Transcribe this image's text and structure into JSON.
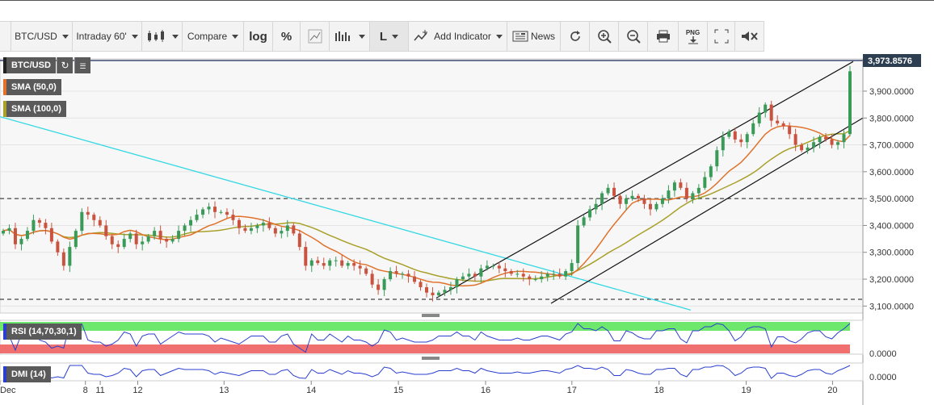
{
  "toolbar": {
    "symbol": "BTC/USD",
    "interval": "Intraday 60'",
    "compare": "Compare",
    "log": "log",
    "percent": "%",
    "chart_style": "L",
    "add_indicator": "Add Indicator",
    "news": "News",
    "icons": [
      "candlestick-icon",
      "draw-icon",
      "bars-icon",
      "indicator-icon",
      "news-icon",
      "refresh-icon",
      "zoom-in-icon",
      "zoom-out-icon",
      "print-icon",
      "png-download-icon",
      "fullscreen-icon",
      "remove-icon"
    ],
    "png_label": "PNG"
  },
  "legends": {
    "symbol": "BTC/USD",
    "sma50": "SMA (50,0)",
    "sma100": "SMA (100,0)",
    "rsi": "RSI (14,70,30,1)",
    "dmi": "DMI (14)"
  },
  "colors": {
    "candle_up": "#3a9a58",
    "candle_down": "#c9533f",
    "sma50": "#e0722c",
    "sma100": "#a8a02a",
    "trendline": "#35d8e3",
    "channel": "#111111",
    "rsi_line": "#2a3fcf",
    "rsi_overbought": "#6de86d",
    "rsi_oversold": "#f07070",
    "last_price_bg": "#2c3e50"
  },
  "chart_data": {
    "type": "candlestick",
    "symbol": "BTC/USD",
    "last_price": "3,973.8576",
    "ylim": [
      3080,
      4020
    ],
    "y_ticks": [
      "3,100.0000",
      "3,200.0000",
      "3,300.0000",
      "3,400.0000",
      "3,500.0000",
      "3,600.0000",
      "3,700.0000",
      "3,800.0000",
      "3,900.0000"
    ],
    "y_tick_values": [
      3100,
      3200,
      3300,
      3400,
      3500,
      3600,
      3700,
      3800,
      3900
    ],
    "x_ticks": [
      {
        "label": "Dec",
        "t": 0
      },
      {
        "label": "8",
        "t": 0.98
      },
      {
        "label": "11",
        "t": 1.15
      },
      {
        "label": "12",
        "t": 1.58
      },
      {
        "label": "13",
        "t": 2.57
      },
      {
        "label": "14",
        "t": 3.57
      },
      {
        "label": "15",
        "t": 4.57
      },
      {
        "label": "16",
        "t": 5.57
      },
      {
        "label": "17",
        "t": 6.56
      },
      {
        "label": "18",
        "t": 7.56
      },
      {
        "label": "19",
        "t": 8.56
      },
      {
        "label": "20",
        "t": 9.55
      }
    ],
    "horizontal_levels": [
      3500,
      3125
    ],
    "close": [
      3380,
      3390,
      3330,
      3350,
      3380,
      3420,
      3410,
      3390,
      3340,
      3300,
      3250,
      3320,
      3380,
      3450,
      3440,
      3420,
      3400,
      3360,
      3330,
      3320,
      3350,
      3370,
      3330,
      3340,
      3360,
      3380,
      3350,
      3340,
      3350,
      3380,
      3400,
      3420,
      3440,
      3460,
      3470,
      3450,
      3450,
      3440,
      3420,
      3390,
      3380,
      3390,
      3400,
      3410,
      3390,
      3370,
      3380,
      3400,
      3370,
      3320,
      3250,
      3270,
      3260,
      3250,
      3270,
      3270,
      3250,
      3260,
      3250,
      3240,
      3220,
      3180,
      3160,
      3200,
      3230,
      3220,
      3220,
      3210,
      3190,
      3170,
      3150,
      3140,
      3150,
      3160,
      3170,
      3200,
      3210,
      3220,
      3210,
      3240,
      3250,
      3250,
      3240,
      3230,
      3220,
      3220,
      3210,
      3200,
      3200,
      3210,
      3220,
      3220,
      3210,
      3230,
      3260,
      3400,
      3430,
      3460,
      3480,
      3520,
      3540,
      3510,
      3480,
      3500,
      3510,
      3500,
      3480,
      3460,
      3480,
      3500,
      3530,
      3560,
      3540,
      3500,
      3520,
      3540,
      3580,
      3620,
      3680,
      3730,
      3750,
      3720,
      3710,
      3740,
      3780,
      3820,
      3850,
      3790,
      3780,
      3770,
      3740,
      3700,
      3680,
      3690,
      3710,
      3730,
      3720,
      3700,
      3710,
      3740,
      3973.86
    ],
    "rsi": {
      "band_upper": 70,
      "band_lower": 30,
      "tick": "0.0000"
    },
    "dmi": {
      "tick": "0.0000"
    }
  }
}
